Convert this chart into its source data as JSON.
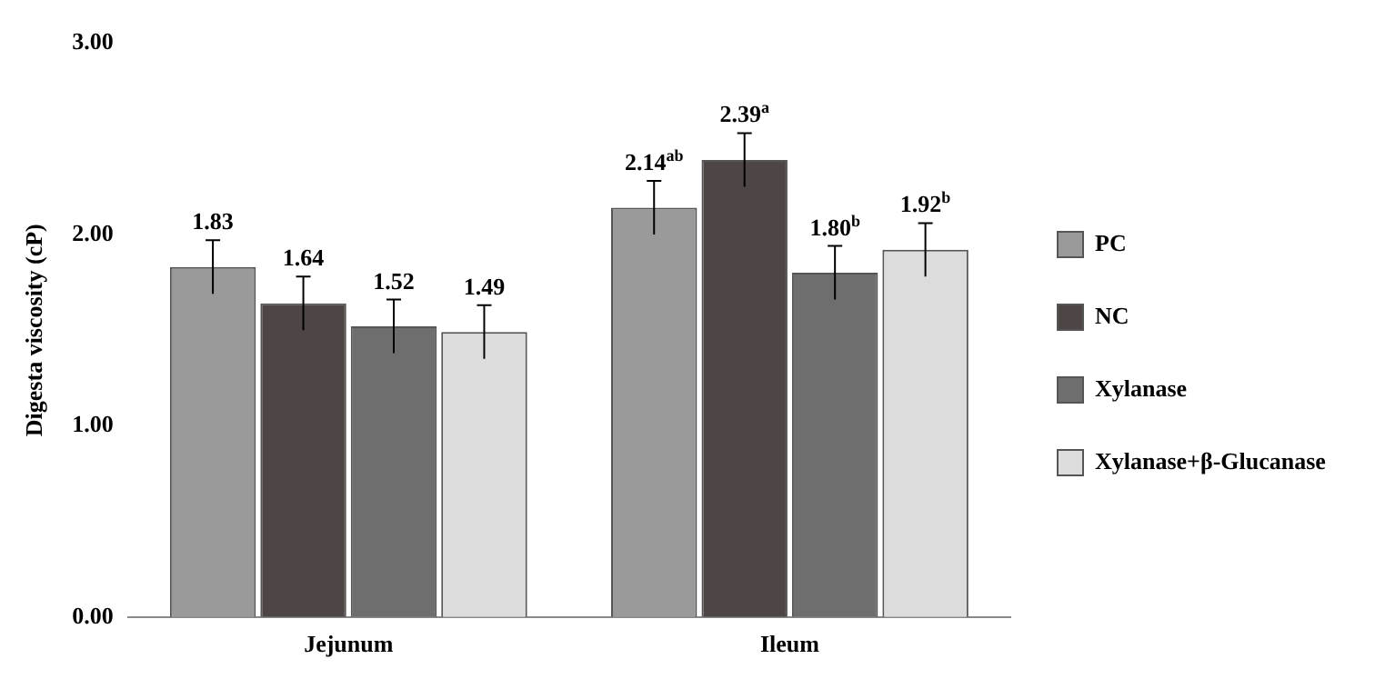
{
  "chart_data": {
    "type": "bar",
    "ylabel": "Digesta viscosity (cP)",
    "categories": [
      "Jejunum",
      "Ileum"
    ],
    "series": [
      {
        "name": "PC",
        "color": "#9a9a9a",
        "values": [
          1.83,
          2.14
        ],
        "errors": [
          0.14,
          0.14
        ],
        "value_labels": [
          "1.83",
          "2.14$^{ab}$"
        ]
      },
      {
        "name": "NC",
        "color": "#4d4644",
        "values": [
          1.64,
          2.39
        ],
        "errors": [
          0.14,
          0.14
        ],
        "value_labels": [
          "1.64",
          "2.39$^{a}$"
        ]
      },
      {
        "name": "Xylanase",
        "color": "#6e6e6e",
        "values": [
          1.52,
          1.8
        ],
        "errors": [
          0.14,
          0.14
        ],
        "value_labels": [
          "1.52",
          "1.80$^{b}$"
        ]
      },
      {
        "name": "Xylanase+β-Glucanase",
        "color": "#dcdcdc",
        "values": [
          1.49,
          1.92
        ],
        "errors": [
          0.14,
          0.14
        ],
        "value_labels": [
          "1.49",
          "1.92$^{b}$"
        ]
      }
    ],
    "ylim": [
      0,
      3
    ],
    "yticks": [
      {
        "value": 0,
        "label": "0.00"
      },
      {
        "value": 1,
        "label": "1.00"
      },
      {
        "value": 2,
        "label": "2.00"
      },
      {
        "value": 3,
        "label": "3.00"
      }
    ],
    "legend": "right"
  }
}
